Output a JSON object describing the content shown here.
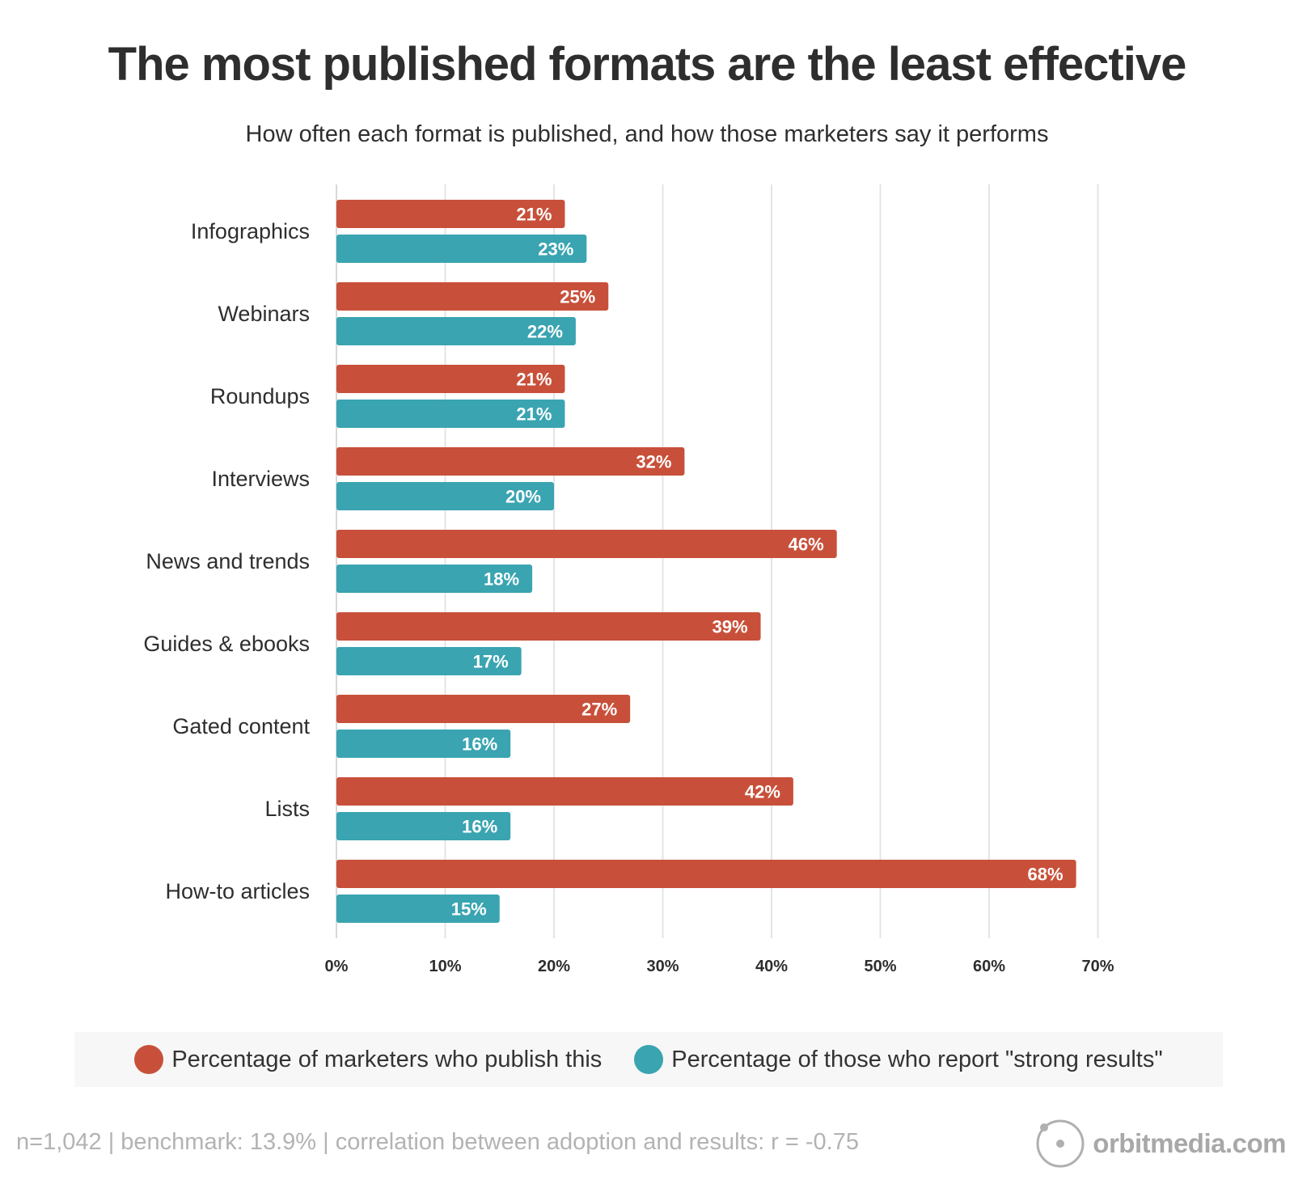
{
  "title": "The most published formats are the least effective",
  "subtitle": "How often each format is published, and how those marketers say it performs",
  "colors": {
    "publish": "#c8503a",
    "strong": "#3aa4b1",
    "grid": "#e4e4e4",
    "text": "#2e2e2e"
  },
  "chart_data": {
    "type": "bar",
    "orientation": "horizontal",
    "categories": [
      "Infographics",
      "Webinars",
      "Roundups",
      "Interviews",
      "News and trends",
      "Guides & ebooks",
      "Gated content",
      "Lists",
      "How-to articles"
    ],
    "series": [
      {
        "name": "Percentage of marketers who publish this",
        "values": [
          21,
          25,
          21,
          32,
          46,
          39,
          27,
          42,
          68
        ]
      },
      {
        "name": "Percentage of those who report \"strong results\"",
        "values": [
          23,
          22,
          21,
          20,
          18,
          17,
          16,
          16,
          15
        ]
      }
    ],
    "xlim": [
      0,
      70
    ],
    "xticks": [
      0,
      10,
      20,
      30,
      40,
      50,
      60,
      70
    ],
    "tick_suffix": "%",
    "value_suffix": "%",
    "grid": true,
    "legend_position": "bottom"
  },
  "legend": {
    "publish_label": "Percentage of marketers who publish this",
    "strong_label": "Percentage of those who report \"strong results\""
  },
  "footer": {
    "note": "n=1,042 | benchmark: 13.9% | correlation between adoption and results: r = -0.75"
  },
  "logo": {
    "text": "orbitmedia.com"
  }
}
